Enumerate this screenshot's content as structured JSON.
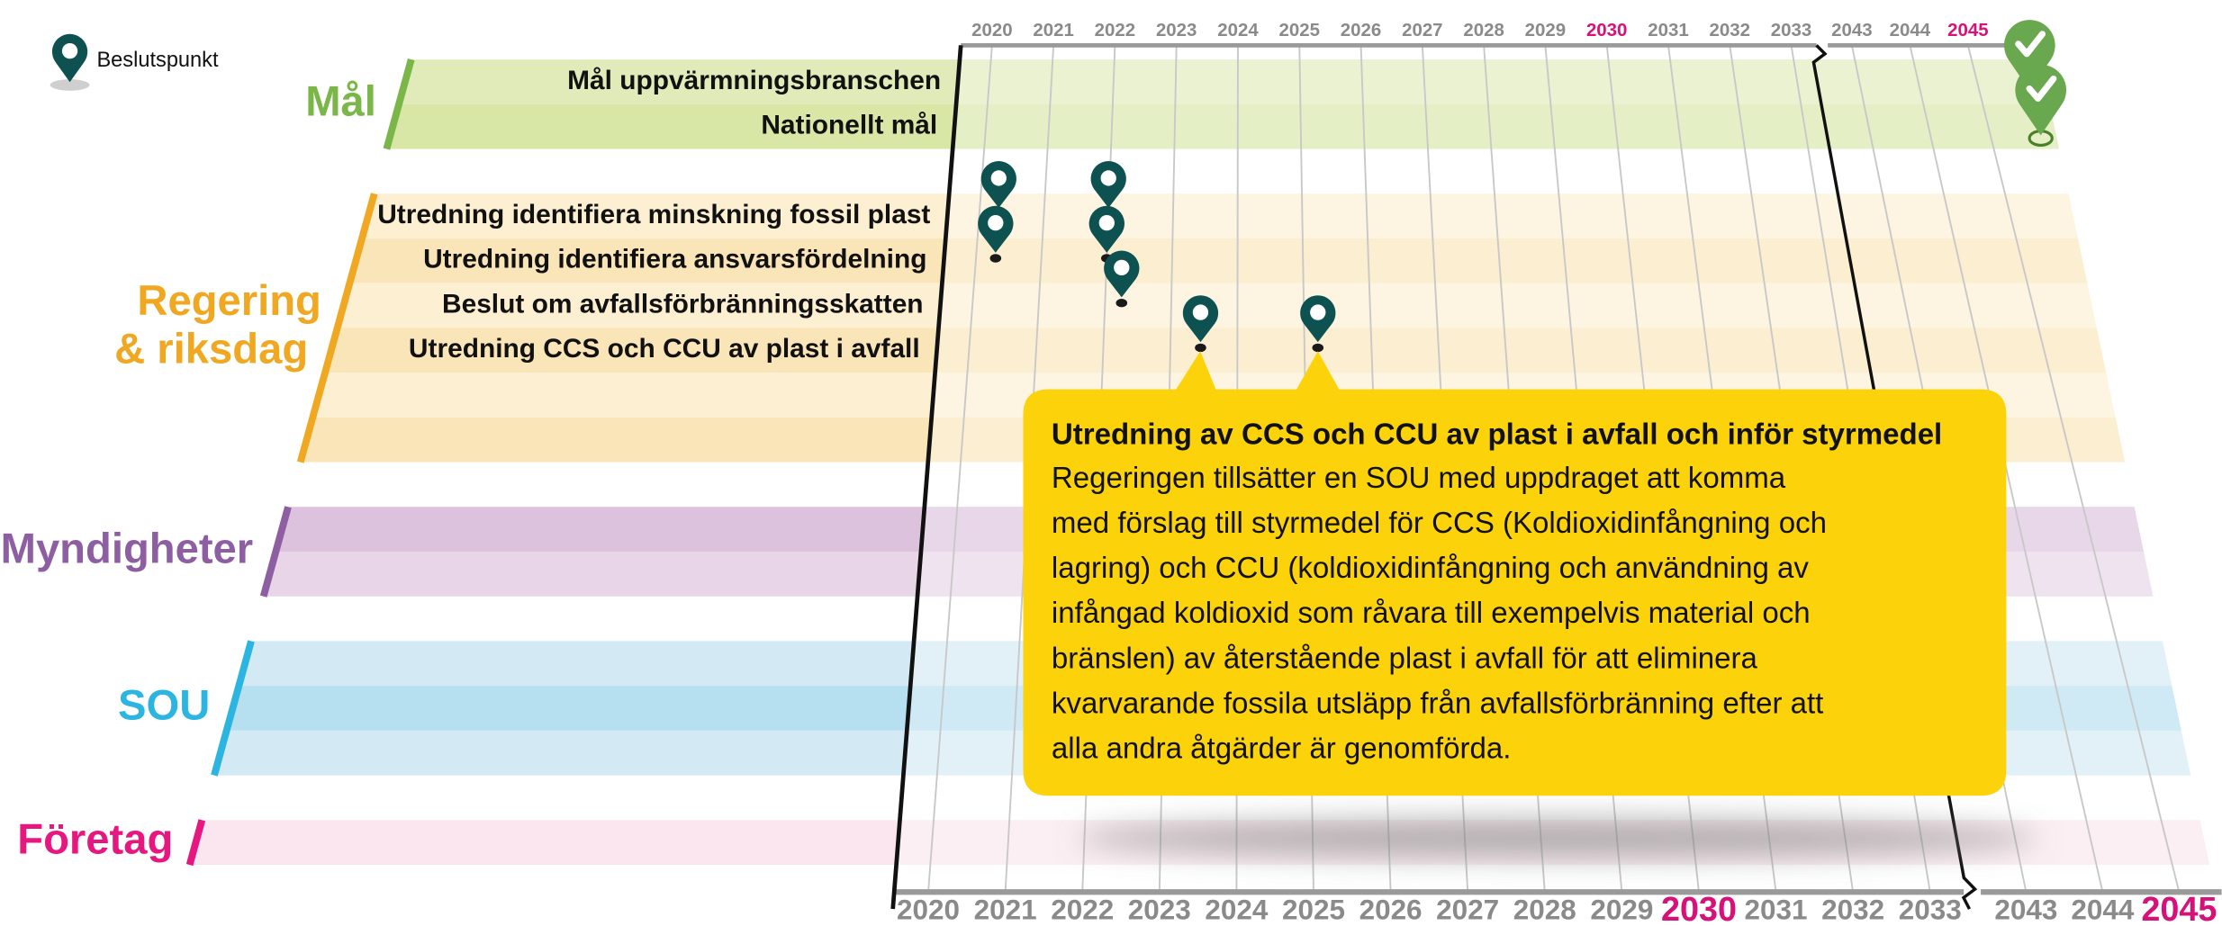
{
  "legend": {
    "label": "Beslutspunkt"
  },
  "highlight_color": "#d6127a",
  "top_axis": [
    {
      "label": "2020"
    },
    {
      "label": "2021"
    },
    {
      "label": "2022"
    },
    {
      "label": "2023"
    },
    {
      "label": "2024"
    },
    {
      "label": "2025"
    },
    {
      "label": "2026"
    },
    {
      "label": "2027"
    },
    {
      "label": "2028"
    },
    {
      "label": "2029"
    },
    {
      "label": "2030",
      "highlight": true
    },
    {
      "label": "2031"
    },
    {
      "label": "2032"
    },
    {
      "label": "2033"
    },
    {
      "label": "2043"
    },
    {
      "label": "2044"
    },
    {
      "label": "2045",
      "highlight": true
    }
  ],
  "bottom_axis": [
    {
      "label": "2020"
    },
    {
      "label": "2021"
    },
    {
      "label": "2022"
    },
    {
      "label": "2023"
    },
    {
      "label": "2024"
    },
    {
      "label": "2025"
    },
    {
      "label": "2026"
    },
    {
      "label": "2027"
    },
    {
      "label": "2028"
    },
    {
      "label": "2029"
    },
    {
      "label": "2030",
      "highlight": true
    },
    {
      "label": "2031"
    },
    {
      "label": "2032"
    },
    {
      "label": "2033"
    },
    {
      "label": "2043"
    },
    {
      "label": "2044"
    },
    {
      "label": "2045",
      "highlight": true
    }
  ],
  "groups": [
    {
      "label_lines": [
        "Mål"
      ],
      "color": "#7ab648",
      "band_colors": [
        "#e1ebb9",
        "#d8e6a6"
      ],
      "rows": [
        {
          "label": "Mål uppvärmningsbranschen",
          "goal_year": 2045
        },
        {
          "label": "Nationellt mål",
          "goal_year": 2045
        }
      ]
    },
    {
      "label_lines": [
        "Regering",
        "& riksdag"
      ],
      "color": "#f0a822",
      "band_colors": [
        "#fcefd2",
        "#fae5b9"
      ],
      "rows": [
        {
          "label": "Utredning identifiera minskning fossil plast",
          "decision_years": [
            2020.3,
            2022
          ]
        },
        {
          "label": "Utredning identifiera ansvarsfördelning",
          "decision_years": [
            2020.3,
            2022
          ]
        },
        {
          "label": "Beslut om avfallsförbränningsskatten",
          "decision_years": [
            2022.25
          ]
        },
        {
          "label": "Utredning CCS och CCU av plast i avfall",
          "decision_years": [
            2023.45,
            2025.2
          ]
        },
        {
          "label": null
        },
        {
          "label": null
        }
      ]
    },
    {
      "label_lines": [
        "Myndigheter"
      ],
      "color": "#8e5ea2",
      "band_colors": [
        "#dcc2dc",
        "#e8d5e8"
      ],
      "rows": [
        {
          "label": null
        },
        {
          "label": null
        }
      ]
    },
    {
      "label_lines": [
        "SOU"
      ],
      "color": "#2bb5e0",
      "band_colors": [
        "#d3eaf4",
        "#b6dff0"
      ],
      "rows": [
        {
          "label": null
        },
        {
          "label": null
        },
        {
          "label": null
        }
      ]
    },
    {
      "label_lines": [
        "Företag"
      ],
      "color": "#e6177e",
      "band_colors": [
        "#fbe6ef"
      ],
      "rows": [
        {
          "label": null
        }
      ]
    }
  ],
  "tooltip": {
    "color": "#fcd20a",
    "title": "Utredning av CCS och CCU av plast i avfall och inför styrmedel",
    "body_lines": [
      "Regeringen tillsätter en SOU med uppdraget att komma",
      "med förslag till styrmedel för CCS (Koldioxidinfångning och",
      "lagring) och CCU (koldioxidinfångning och användning av",
      "infångad koldioxid som råvara till exempelvis material och",
      "bränslen) av återstående plast i avfall för att eliminera",
      "kvarvarande fossila utsläpp från avfallsförbränning efter att",
      "alla andra åtgärder är genomförda."
    ]
  }
}
